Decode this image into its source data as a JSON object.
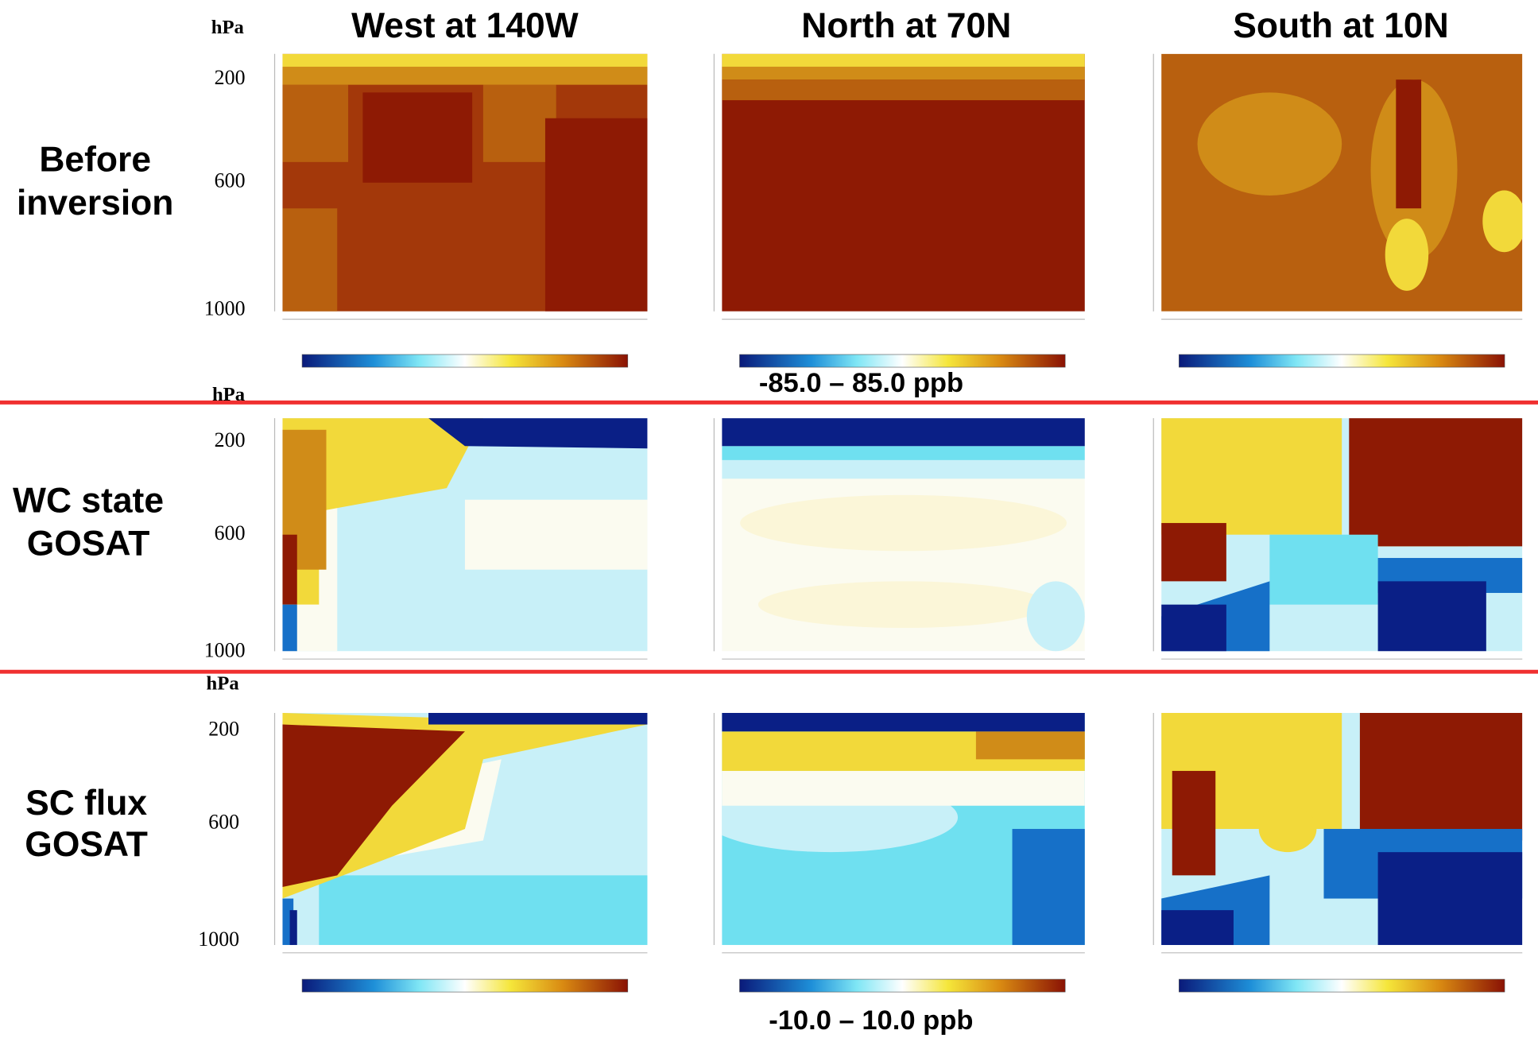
{
  "columns": [
    "West at 140W",
    "North at 70N",
    "South at 10N"
  ],
  "rows": [
    {
      "label": [
        "Before",
        "inversion"
      ],
      "unit": "hPa",
      "yticks": [
        200,
        600,
        1000
      ]
    },
    {
      "label": [
        "WC state",
        "GOSAT"
      ],
      "unit": "hPa",
      "yticks": [
        200,
        600,
        1000
      ]
    },
    {
      "label": [
        "SC flux",
        "GOSAT"
      ],
      "unit": "hPa",
      "yticks": [
        200,
        600,
        1000
      ]
    }
  ],
  "colorbar_ranges": [
    "-85.0 – 85.0 ppb",
    "-10.0 – 10.0 ppb"
  ]
}
